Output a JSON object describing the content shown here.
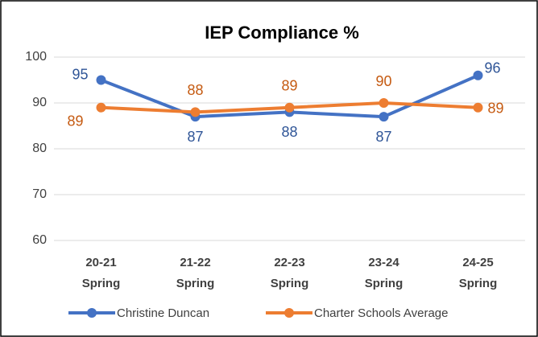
{
  "chart_data": {
    "type": "line",
    "title": "IEP Compliance %",
    "categories": [
      "20-21 Spring",
      "21-22 Spring",
      "22-23 Spring",
      "23-24 Spring",
      "24-25 Spring"
    ],
    "series": [
      {
        "name": "Christine Duncan",
        "color": "#4472c4",
        "values": [
          95,
          87,
          88,
          87,
          96
        ]
      },
      {
        "name": "Charter Schools Average",
        "color": "#ed7d31",
        "values": [
          89,
          88,
          89,
          90,
          89
        ]
      }
    ],
    "ylim": [
      60,
      100
    ],
    "yticks": [
      60,
      70,
      80,
      90,
      100
    ],
    "grid": true,
    "legend": "bottom"
  }
}
